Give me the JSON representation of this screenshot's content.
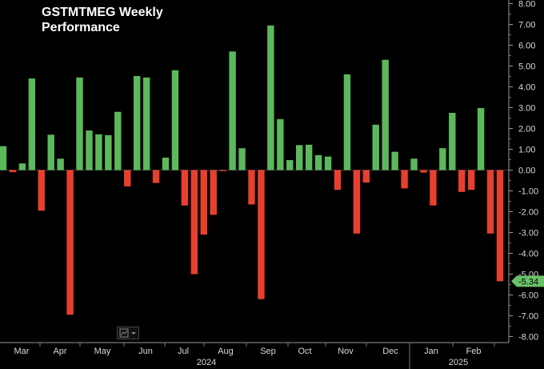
{
  "chart_data": {
    "type": "bar",
    "title": "GSTMTMEG Weekly",
    "subtitle": "Performance",
    "ylim": [
      -8,
      8
    ],
    "y_ticks": [
      "8.00",
      "7.00",
      "6.00",
      "5.00",
      "4.00",
      "3.00",
      "2.00",
      "1.00",
      "0.00",
      "-1.00",
      "-2.00",
      "-3.00",
      "-4.00",
      "-5.00",
      "-6.00",
      "-7.00",
      "-8.00"
    ],
    "last_value_label": "-5.34",
    "month_labels": [
      "Mar",
      "Apr",
      "May",
      "Jun",
      "Jul",
      "Aug",
      "Sep",
      "Oct",
      "Nov",
      "Dec",
      "Jan",
      "Feb"
    ],
    "year_labels": [
      "2024",
      "2025"
    ],
    "values": [
      1.15,
      -0.1,
      0.32,
      4.4,
      -1.95,
      1.7,
      0.55,
      -6.95,
      4.45,
      1.9,
      1.72,
      1.68,
      2.8,
      -0.78,
      4.52,
      4.45,
      -0.62,
      0.6,
      4.8,
      -1.7,
      -5.0,
      -3.1,
      -2.15,
      -0.05,
      5.7,
      1.05,
      -1.65,
      -6.2,
      6.95,
      2.45,
      0.48,
      1.2,
      1.22,
      0.72,
      0.65,
      -0.95,
      4.6,
      -3.05,
      -0.6,
      2.18,
      5.3,
      0.88,
      -0.88,
      0.55,
      -0.12,
      -1.7,
      1.05,
      2.75,
      -1.05,
      -0.95,
      2.98,
      -3.05,
      -5.34
    ],
    "colors": {
      "positive": "#5cb85c",
      "negative": "#e8402f",
      "last_label_bg": "#69c069"
    },
    "grid": false,
    "legend": "none"
  }
}
